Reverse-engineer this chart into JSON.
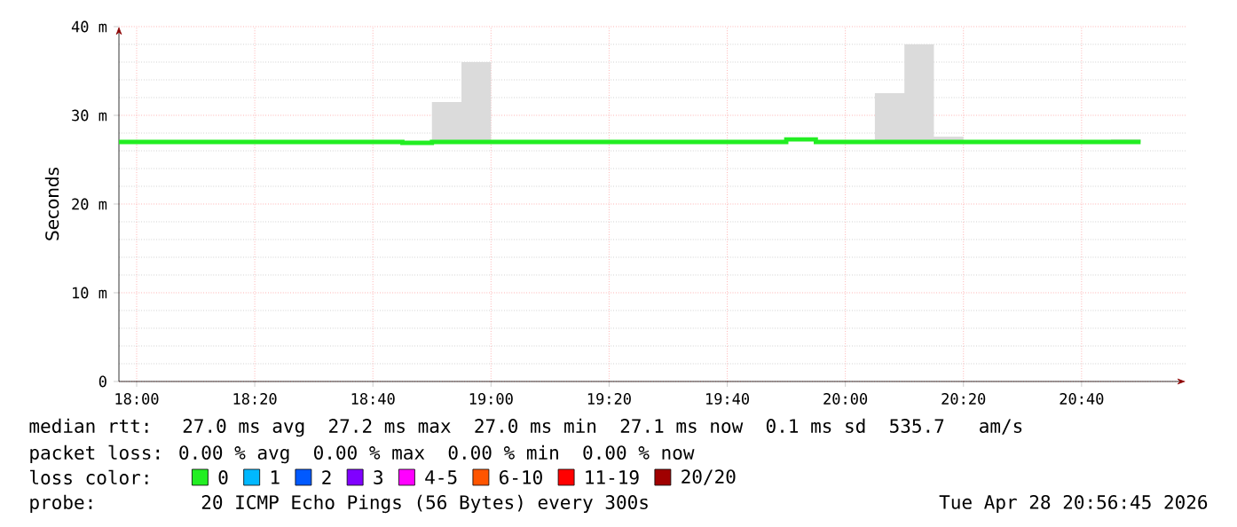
{
  "chart_data": {
    "type": "step",
    "ylabel": "Seconds",
    "legend_title": "loss color:",
    "legend": "bottom",
    "grid": true,
    "xlim": [
      17.95,
      20.96
    ],
    "ylim": [
      0,
      40
    ],
    "xticks": [
      {
        "value": 18.0,
        "label": "18:00"
      },
      {
        "value": 18.3333,
        "label": "18:20"
      },
      {
        "value": 18.6667,
        "label": "18:40"
      },
      {
        "value": 19.0,
        "label": "19:00"
      },
      {
        "value": 19.3333,
        "label": "19:20"
      },
      {
        "value": 19.6667,
        "label": "19:40"
      },
      {
        "value": 20.0,
        "label": "20:00"
      },
      {
        "value": 20.3333,
        "label": "20:20"
      },
      {
        "value": 20.6667,
        "label": "20:40"
      }
    ],
    "yticks": [
      {
        "value": 0,
        "label": "0"
      },
      {
        "value": 10,
        "label": "10 m"
      },
      {
        "value": 20,
        "label": "20 m"
      },
      {
        "value": 30,
        "label": "30 m"
      },
      {
        "value": 40,
        "label": "40 m"
      }
    ],
    "x": [
      17.95,
      18.0,
      18.0833,
      18.1667,
      18.25,
      18.3333,
      18.4167,
      18.5,
      18.5833,
      18.6667,
      18.75,
      18.8333,
      18.9167,
      19.0,
      19.0833,
      19.1667,
      19.25,
      19.3333,
      19.4167,
      19.5,
      19.5833,
      19.6667,
      19.75,
      19.8333,
      19.9167,
      20.0,
      20.0833,
      20.1667,
      20.25,
      20.3333,
      20.4167,
      20.5,
      20.5833,
      20.6667,
      20.75,
      20.8333
    ],
    "series": [
      {
        "name": "0",
        "color": "#22ee22",
        "values": [
          27,
          27,
          27,
          27,
          27,
          27,
          27,
          27,
          27,
          27,
          26.9,
          27,
          27,
          27,
          27,
          27,
          27,
          27,
          27,
          27,
          27,
          27,
          27,
          27.3,
          27,
          27,
          27,
          27,
          27,
          27,
          27,
          27,
          27,
          27,
          27,
          27
        ],
        "lower": [
          27,
          27,
          27,
          27,
          27,
          27,
          27,
          27,
          27,
          27,
          26.9,
          27,
          27,
          27,
          27,
          27,
          27,
          27,
          27,
          27,
          27,
          27,
          27,
          27.3,
          27,
          27,
          27,
          27,
          27,
          27,
          27,
          27,
          27,
          27,
          27,
          27
        ],
        "upper": [
          27,
          27,
          27,
          27,
          27,
          27,
          27,
          27,
          27,
          27,
          26.9,
          31.5,
          36,
          27,
          27,
          27,
          27,
          27,
          27,
          27,
          27,
          27,
          27.2,
          27.3,
          27,
          27,
          32.5,
          38,
          27.6,
          27,
          27,
          27,
          27,
          27,
          27.3,
          27.3
        ]
      },
      {
        "name": "1",
        "color": "#00b8ff",
        "values": [
          null,
          null,
          null,
          null,
          null,
          null,
          null,
          null,
          null,
          null,
          null,
          null,
          null,
          null,
          null,
          null,
          null,
          null,
          null,
          null,
          null,
          null,
          null,
          null,
          null,
          null,
          null,
          null,
          null,
          null,
          null,
          null,
          null,
          null,
          null,
          null
        ]
      },
      {
        "name": "2",
        "color": "#0059ff",
        "values": [
          null,
          null,
          null,
          null,
          null,
          null,
          null,
          null,
          null,
          null,
          null,
          null,
          null,
          null,
          null,
          null,
          null,
          null,
          null,
          null,
          null,
          null,
          null,
          null,
          null,
          null,
          null,
          null,
          null,
          null,
          null,
          null,
          null,
          null,
          null,
          null
        ]
      },
      {
        "name": "3",
        "color": "#8000ff",
        "values": [
          null,
          null,
          null,
          null,
          null,
          null,
          null,
          null,
          null,
          null,
          null,
          null,
          null,
          null,
          null,
          null,
          null,
          null,
          null,
          null,
          null,
          null,
          null,
          null,
          null,
          null,
          null,
          null,
          null,
          null,
          null,
          null,
          null,
          null,
          null,
          null
        ]
      },
      {
        "name": "4-5",
        "color": "#ff00ff",
        "values": [
          null,
          null,
          null,
          null,
          null,
          null,
          null,
          null,
          null,
          null,
          null,
          null,
          null,
          null,
          null,
          null,
          null,
          null,
          null,
          null,
          null,
          null,
          null,
          null,
          null,
          null,
          null,
          null,
          null,
          null,
          null,
          null,
          null,
          null,
          null,
          null
        ]
      },
      {
        "name": "6-10",
        "color": "#ff5500",
        "values": [
          null,
          null,
          null,
          null,
          null,
          null,
          null,
          null,
          null,
          null,
          null,
          null,
          null,
          null,
          null,
          null,
          null,
          null,
          null,
          null,
          null,
          null,
          null,
          null,
          null,
          null,
          null,
          null,
          null,
          null,
          null,
          null,
          null,
          null,
          null,
          null
        ]
      },
      {
        "name": "11-19",
        "color": "#ff0000",
        "values": [
          null,
          null,
          null,
          null,
          null,
          null,
          null,
          null,
          null,
          null,
          null,
          null,
          null,
          null,
          null,
          null,
          null,
          null,
          null,
          null,
          null,
          null,
          null,
          null,
          null,
          null,
          null,
          null,
          null,
          null,
          null,
          null,
          null,
          null,
          null,
          null
        ]
      },
      {
        "name": "20/20",
        "color": "#a00000",
        "values": [
          null,
          null,
          null,
          null,
          null,
          null,
          null,
          null,
          null,
          null,
          null,
          null,
          null,
          null,
          null,
          null,
          null,
          null,
          null,
          null,
          null,
          null,
          null,
          null,
          null,
          null,
          null,
          null,
          null,
          null,
          null,
          null,
          null,
          null,
          null,
          null
        ]
      }
    ],
    "annotations": [
      "median rtt:  27.0 ms avg  27.2 ms max  27.0 ms min  27.1 ms now  0.1 ms sd  535.7   am/s",
      "packet loss: 0.00 % avg  0.00 % max  0.00 % min  0.00 % now",
      "probe:       20 ICMP Echo Pings (56 Bytes) every 300s",
      "Tue Apr 28 20:56:45 2026"
    ]
  }
}
